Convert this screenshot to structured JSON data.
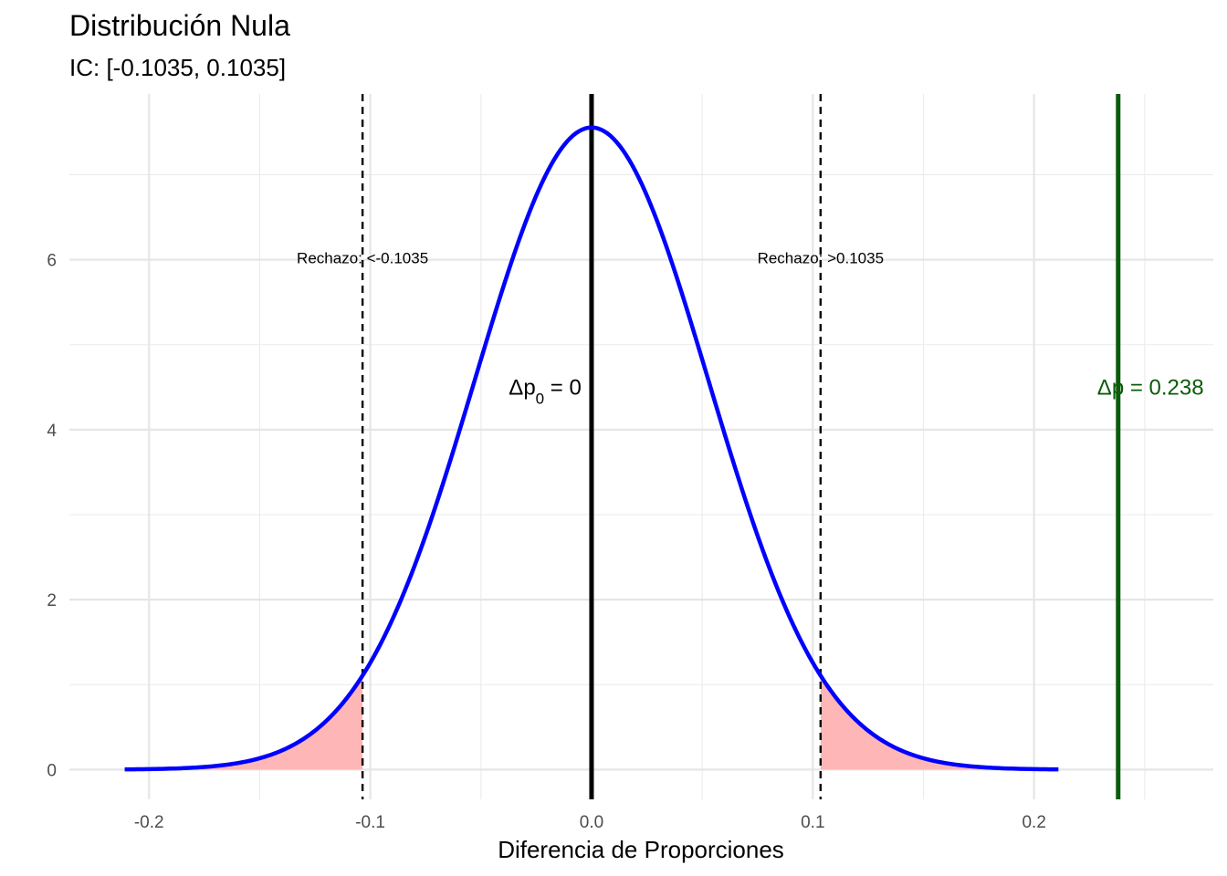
{
  "chart_data": {
    "type": "line",
    "title": "Distribución Nula",
    "subtitle": "IC: [-0.1035, 0.1035]",
    "xlabel": "Diferencia de Proporciones",
    "ylabel": "",
    "xlim": [
      -0.236,
      0.281
    ],
    "ylim": [
      -0.35,
      7.95
    ],
    "x_ticks": [
      {
        "value": -0.2,
        "label": "-0.2"
      },
      {
        "value": -0.1,
        "label": "-0.1"
      },
      {
        "value": 0.0,
        "label": "0.0"
      },
      {
        "value": 0.1,
        "label": "0.1"
      },
      {
        "value": 0.2,
        "label": "0.2"
      }
    ],
    "y_ticks": [
      {
        "value": 0,
        "label": "0"
      },
      {
        "value": 2,
        "label": "2"
      },
      {
        "value": 4,
        "label": "4"
      },
      {
        "value": 6,
        "label": "6"
      }
    ],
    "grid": true,
    "curve": {
      "distribution": "normal",
      "mean": 0,
      "sd": 0.0528,
      "x_range": [
        -0.211,
        0.211
      ],
      "color": "#0000ff"
    },
    "rejection_regions": {
      "fill_color": "#ffb6b6",
      "lower_critical": -0.1035,
      "upper_critical": 0.1035
    },
    "reference_lines": [
      {
        "x": -0.1035,
        "style": "dashed",
        "color": "#000000"
      },
      {
        "x": 0.1035,
        "style": "dashed",
        "color": "#000000"
      },
      {
        "x": 0,
        "style": "solid",
        "color": "#000000"
      },
      {
        "x": 0.238,
        "style": "solid",
        "color": "#0a5c0a"
      }
    ],
    "annotations": [
      {
        "text": "Rechazo: <-0.1035",
        "x": -0.1035,
        "y": 6.0,
        "type": "rejection"
      },
      {
        "text": "Rechazo: >0.1035",
        "x": 0.1035,
        "y": 6.0,
        "type": "rejection"
      },
      {
        "text": "Δp",
        "sub": "0",
        "rest": " = 0",
        "x": -0.021,
        "y": 4.5,
        "type": "null"
      },
      {
        "text": "Δp = 0.238",
        "x": 0.238,
        "y": 4.5,
        "type": "observed",
        "color": "#0a5c0a"
      }
    ]
  }
}
